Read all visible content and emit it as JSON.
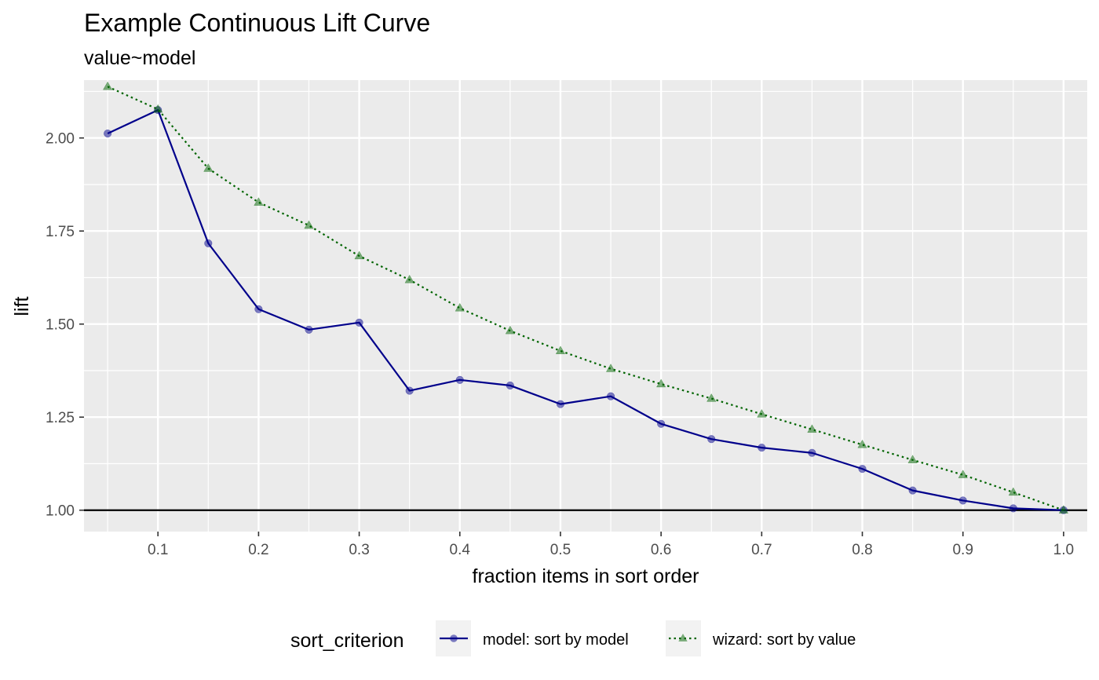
{
  "chart_data": {
    "type": "line",
    "title": "Example Continuous Lift Curve",
    "subtitle": "value~model",
    "xlabel": "fraction items in sort order",
    "ylabel": "lift",
    "xlim": [
      0.0265,
      1.0235
    ],
    "ylim": [
      0.9425,
      2.1555
    ],
    "x_ticks": [
      0.1,
      0.2,
      0.3,
      0.4,
      0.5,
      0.6,
      0.7,
      0.8,
      0.9,
      1.0
    ],
    "x_tick_labels": [
      "0.1",
      "0.2",
      "0.3",
      "0.4",
      "0.5",
      "0.6",
      "0.7",
      "0.8",
      "0.9",
      "1.0"
    ],
    "y_ticks": [
      1.0,
      1.25,
      1.5,
      1.75,
      2.0
    ],
    "y_tick_labels": [
      "1.00",
      "1.25",
      "1.50",
      "1.75",
      "2.00"
    ],
    "reference_line_y": 1.0,
    "x": [
      0.05,
      0.1,
      0.15,
      0.2,
      0.25,
      0.3,
      0.35,
      0.4,
      0.45,
      0.5,
      0.55,
      0.6,
      0.65,
      0.7,
      0.75,
      0.8,
      0.85,
      0.9,
      0.95,
      1.0
    ],
    "series": [
      {
        "name": "model",
        "legend_label": "model: sort by model",
        "color": "#00008b",
        "linestyle": "solid",
        "marker": "circle",
        "values": [
          2.012,
          2.075,
          1.717,
          1.54,
          1.485,
          1.504,
          1.321,
          1.35,
          1.335,
          1.285,
          1.306,
          1.232,
          1.191,
          1.168,
          1.154,
          1.111,
          1.053,
          1.026,
          1.005,
          1.0
        ]
      },
      {
        "name": "wizard",
        "legend_label": "wizard: sort by value",
        "color": "#006400",
        "linestyle": "dotted",
        "marker": "triangle",
        "values": [
          2.138,
          2.077,
          1.918,
          1.827,
          1.765,
          1.683,
          1.619,
          1.543,
          1.482,
          1.428,
          1.38,
          1.339,
          1.3,
          1.258,
          1.217,
          1.176,
          1.135,
          1.095,
          1.048,
          1.0
        ]
      }
    ],
    "legend": {
      "title": "sort_criterion",
      "position": "bottom"
    },
    "panel_background": "#ebebeb",
    "grid_color": "#ffffff"
  }
}
